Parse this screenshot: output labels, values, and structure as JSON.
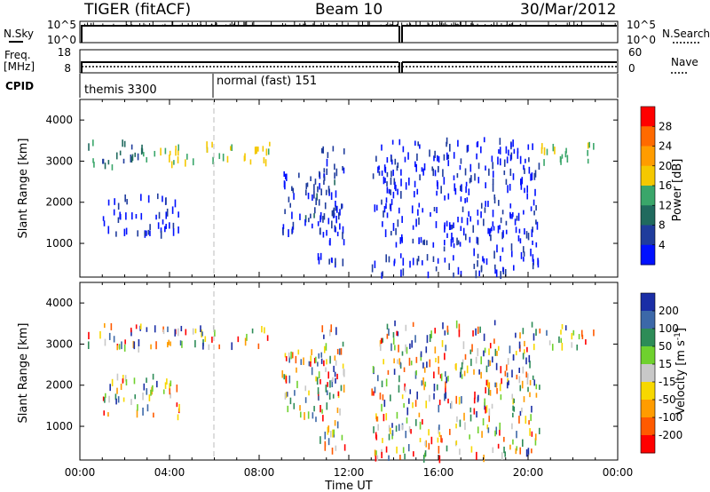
{
  "header": {
    "left": "TIGER (fitACF)",
    "center": "Beam 10",
    "right": "30/Mar/2012"
  },
  "noise_panel": {
    "left_label": "N.Sky",
    "right_label": "N.Search",
    "left_ticks": [
      "10^5",
      "10^0"
    ],
    "right_ticks": [
      "10^5",
      "10^0"
    ]
  },
  "freq_panel": {
    "left_label": "Freq.",
    "left_units": "[MHz]",
    "right_label": "Nave",
    "left_ticks": [
      "18",
      "8"
    ],
    "right_ticks": [
      "60",
      "0"
    ]
  },
  "cpid_panel": {
    "label": "CPID",
    "segments": [
      "themis 3300",
      "normal (fast) 151"
    ]
  },
  "power_scale": {
    "title": "Power [dB]",
    "ticks": [
      "28",
      "24",
      "20",
      "16",
      "12",
      "8",
      "4"
    ],
    "colors": [
      "#ff0000",
      "#ff6a00",
      "#ff9c00",
      "#f5c800",
      "#3aa66a",
      "#206a5e",
      "#1f3c9c",
      "#0010ff"
    ]
  },
  "velocity_scale": {
    "title": "Velocity [m s",
    "title_sup": "-1",
    "title_end": "]",
    "ticks": [
      "200",
      "100",
      "50",
      "15",
      "-15",
      "-50",
      "-100",
      "-200"
    ],
    "colors": [
      "#1a2ea6",
      "#3c68a8",
      "#2d8c57",
      "#6fd12e",
      "#c8c8c8",
      "#f7d800",
      "#ff9c00",
      "#ff5a00",
      "#ff0000"
    ]
  },
  "chart_data": [
    {
      "type": "scatter",
      "title": "",
      "ylabel": "Slant Range [km]",
      "xlabel": "",
      "ylim": [
        180,
        4500
      ],
      "yticks": [
        "1000",
        "2000",
        "3000",
        "4000"
      ],
      "xlim": [
        0,
        24
      ],
      "quantity": "power",
      "note_points": "approximate echo regions (hours UT, slant range km)",
      "regions": [
        {
          "x": [
            0.3,
            2.8
          ],
          "y": [
            2800,
            3450
          ],
          "level": 0.3
        },
        {
          "x": [
            1.0,
            4.5
          ],
          "y": [
            1200,
            2200
          ],
          "level": 0.1
        },
        {
          "x": [
            2.8,
            8.5
          ],
          "y": [
            2900,
            3400
          ],
          "level": 0.5
        },
        {
          "x": [
            9.0,
            11.5
          ],
          "y": [
            1200,
            2800
          ],
          "level": 0.15
        },
        {
          "x": [
            10.5,
            11.8
          ],
          "y": [
            300,
            3400
          ],
          "level": 0.12
        },
        {
          "x": [
            13.0,
            20.5
          ],
          "y": [
            200,
            3500
          ],
          "level": 0.08
        },
        {
          "x": [
            20.5,
            23.0
          ],
          "y": [
            2900,
            3400
          ],
          "level": 0.45
        }
      ]
    },
    {
      "type": "scatter",
      "title": "",
      "ylabel": "Slant Range [km]",
      "xlabel": "Time UT",
      "ylim": [
        180,
        4500
      ],
      "yticks": [
        "1000",
        "2000",
        "3000",
        "4000"
      ],
      "xlim": [
        0,
        24
      ],
      "xticks": [
        "00:00",
        "04:00",
        "08:00",
        "12:00",
        "16:00",
        "20:00",
        "00:00"
      ],
      "quantity": "velocity",
      "regions": [
        {
          "x": [
            0.3,
            2.8
          ],
          "y": [
            2800,
            3450
          ]
        },
        {
          "x": [
            1.0,
            4.5
          ],
          "y": [
            1200,
            2200
          ]
        },
        {
          "x": [
            2.8,
            8.5
          ],
          "y": [
            2900,
            3400
          ]
        },
        {
          "x": [
            9.0,
            11.5
          ],
          "y": [
            1200,
            2800
          ]
        },
        {
          "x": [
            10.5,
            11.8
          ],
          "y": [
            300,
            3400
          ]
        },
        {
          "x": [
            13.0,
            20.5
          ],
          "y": [
            200,
            3500
          ]
        },
        {
          "x": [
            20.5,
            23.0
          ],
          "y": [
            2900,
            3400
          ]
        }
      ]
    }
  ]
}
